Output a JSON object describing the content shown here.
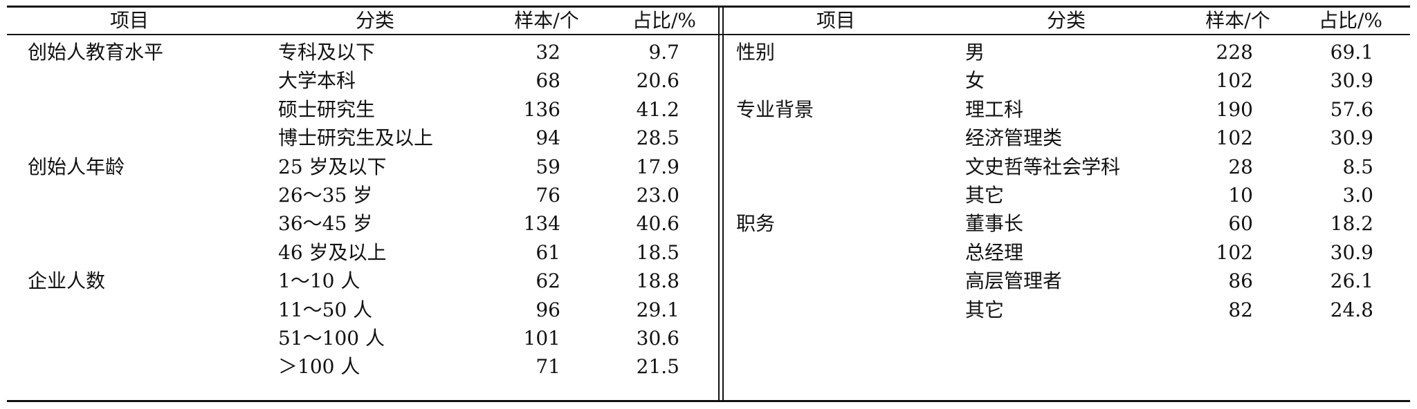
{
  "headers": [
    "项目",
    "分类",
    "样本/个",
    "占比/%"
  ],
  "left_table": [
    {
      "item": "创始人教育水平",
      "category": "专科及以下",
      "sample": "32",
      "percent": "9.7"
    },
    {
      "item": "",
      "category": "大学本科",
      "sample": "68",
      "percent": "20.6"
    },
    {
      "item": "",
      "category": "硕士研究生",
      "sample": "136",
      "percent": "41.2"
    },
    {
      "item": "",
      "category": "博士研究生及以上",
      "sample": "94",
      "percent": "28.5"
    },
    {
      "item": "创始人年龄",
      "category": "25 岁及以下",
      "sample": "59",
      "percent": "17.9"
    },
    {
      "item": "",
      "category": "26～35 岁",
      "sample": "76",
      "percent": "23.0"
    },
    {
      "item": "",
      "category": "36～45 岁",
      "sample": "134",
      "percent": "40.6"
    },
    {
      "item": "",
      "category": "46 岁及以上",
      "sample": "61",
      "percent": "18.5"
    },
    {
      "item": "企业人数",
      "category": "1～10 人",
      "sample": "62",
      "percent": "18.8"
    },
    {
      "item": "",
      "category": "11～50 人",
      "sample": "96",
      "percent": "29.1"
    },
    {
      "item": "",
      "category": "51～100 人",
      "sample": "101",
      "percent": "30.6"
    },
    {
      "item": "",
      "category": "＞100 人",
      "sample": "71",
      "percent": "21.5"
    }
  ],
  "right_table": [
    {
      "item": "性别",
      "category": "男",
      "sample": "228",
      "percent": "69.1"
    },
    {
      "item": "",
      "category": "女",
      "sample": "102",
      "percent": "30.9"
    },
    {
      "item": "专业背景",
      "category": "理工科",
      "sample": "190",
      "percent": "57.6"
    },
    {
      "item": "",
      "category": "经济管理类",
      "sample": "102",
      "percent": "30.9"
    },
    {
      "item": "",
      "category": "文史哲等社会学科",
      "sample": "28",
      "percent": "8.5"
    },
    {
      "item": "",
      "category": "其它",
      "sample": "10",
      "percent": "3.0"
    },
    {
      "item": "职务",
      "category": "董事长",
      "sample": "60",
      "percent": "18.2"
    },
    {
      "item": "",
      "category": "总经理",
      "sample": "102",
      "percent": "30.9"
    },
    {
      "item": "",
      "category": "高层管理者",
      "sample": "86",
      "percent": "26.1"
    },
    {
      "item": "",
      "category": "其它",
      "sample": "82",
      "percent": "24.8"
    }
  ]
}
